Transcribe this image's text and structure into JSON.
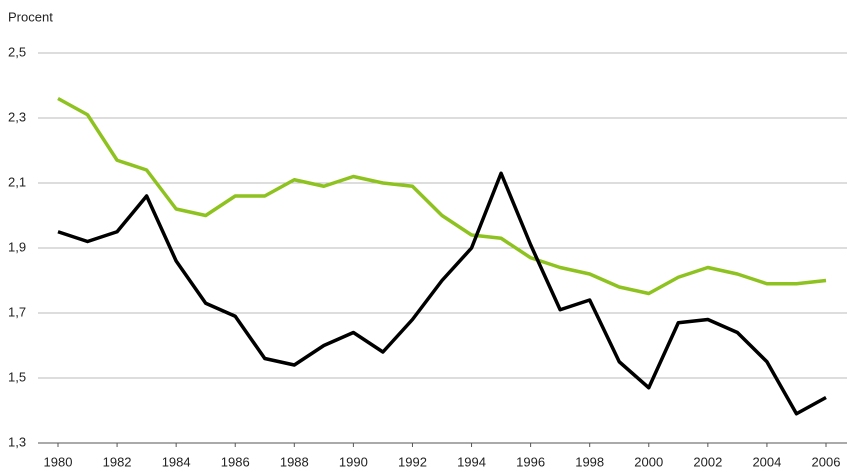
{
  "chart_data": {
    "type": "line",
    "y_label": "Procent",
    "x": [
      1980,
      1981,
      1982,
      1983,
      1984,
      1985,
      1986,
      1987,
      1988,
      1989,
      1990,
      1991,
      1992,
      1993,
      1994,
      1995,
      1996,
      1997,
      1998,
      1999,
      2000,
      2001,
      2002,
      2003,
      2004,
      2005,
      2006
    ],
    "series": [
      {
        "color": "#8dc21f",
        "values": [
          2.36,
          2.31,
          2.17,
          2.14,
          2.02,
          2.0,
          2.06,
          2.06,
          2.11,
          2.09,
          2.12,
          2.1,
          2.09,
          2.0,
          1.94,
          1.93,
          1.87,
          1.84,
          1.82,
          1.78,
          1.76,
          1.81,
          1.84,
          1.82,
          1.79,
          1.79,
          1.8
        ]
      },
      {
        "color": "#000000",
        "values": [
          1.95,
          1.92,
          1.95,
          2.06,
          1.86,
          1.73,
          1.69,
          1.56,
          1.54,
          1.6,
          1.64,
          1.58,
          1.68,
          1.8,
          1.9,
          2.13,
          1.91,
          1.71,
          1.74,
          1.55,
          1.47,
          1.67,
          1.68,
          1.64,
          1.55,
          1.39,
          1.44
        ]
      }
    ],
    "xlim": [
      1980,
      2006
    ],
    "xticks": [
      1980,
      1982,
      1984,
      1986,
      1988,
      1990,
      1992,
      1994,
      1996,
      1998,
      2000,
      2002,
      2004,
      2006
    ],
    "ylim": [
      1.3,
      2.5
    ],
    "yticks": [
      {
        "value": 1.3,
        "label": "1,3"
      },
      {
        "value": 1.5,
        "label": "1,5"
      },
      {
        "value": 1.7,
        "label": "1,7"
      },
      {
        "value": 1.9,
        "label": "1,9"
      },
      {
        "value": 2.1,
        "label": "2,1"
      },
      {
        "value": 2.3,
        "label": "2,3"
      },
      {
        "value": 2.5,
        "label": "2,5"
      }
    ],
    "grid": true
  }
}
